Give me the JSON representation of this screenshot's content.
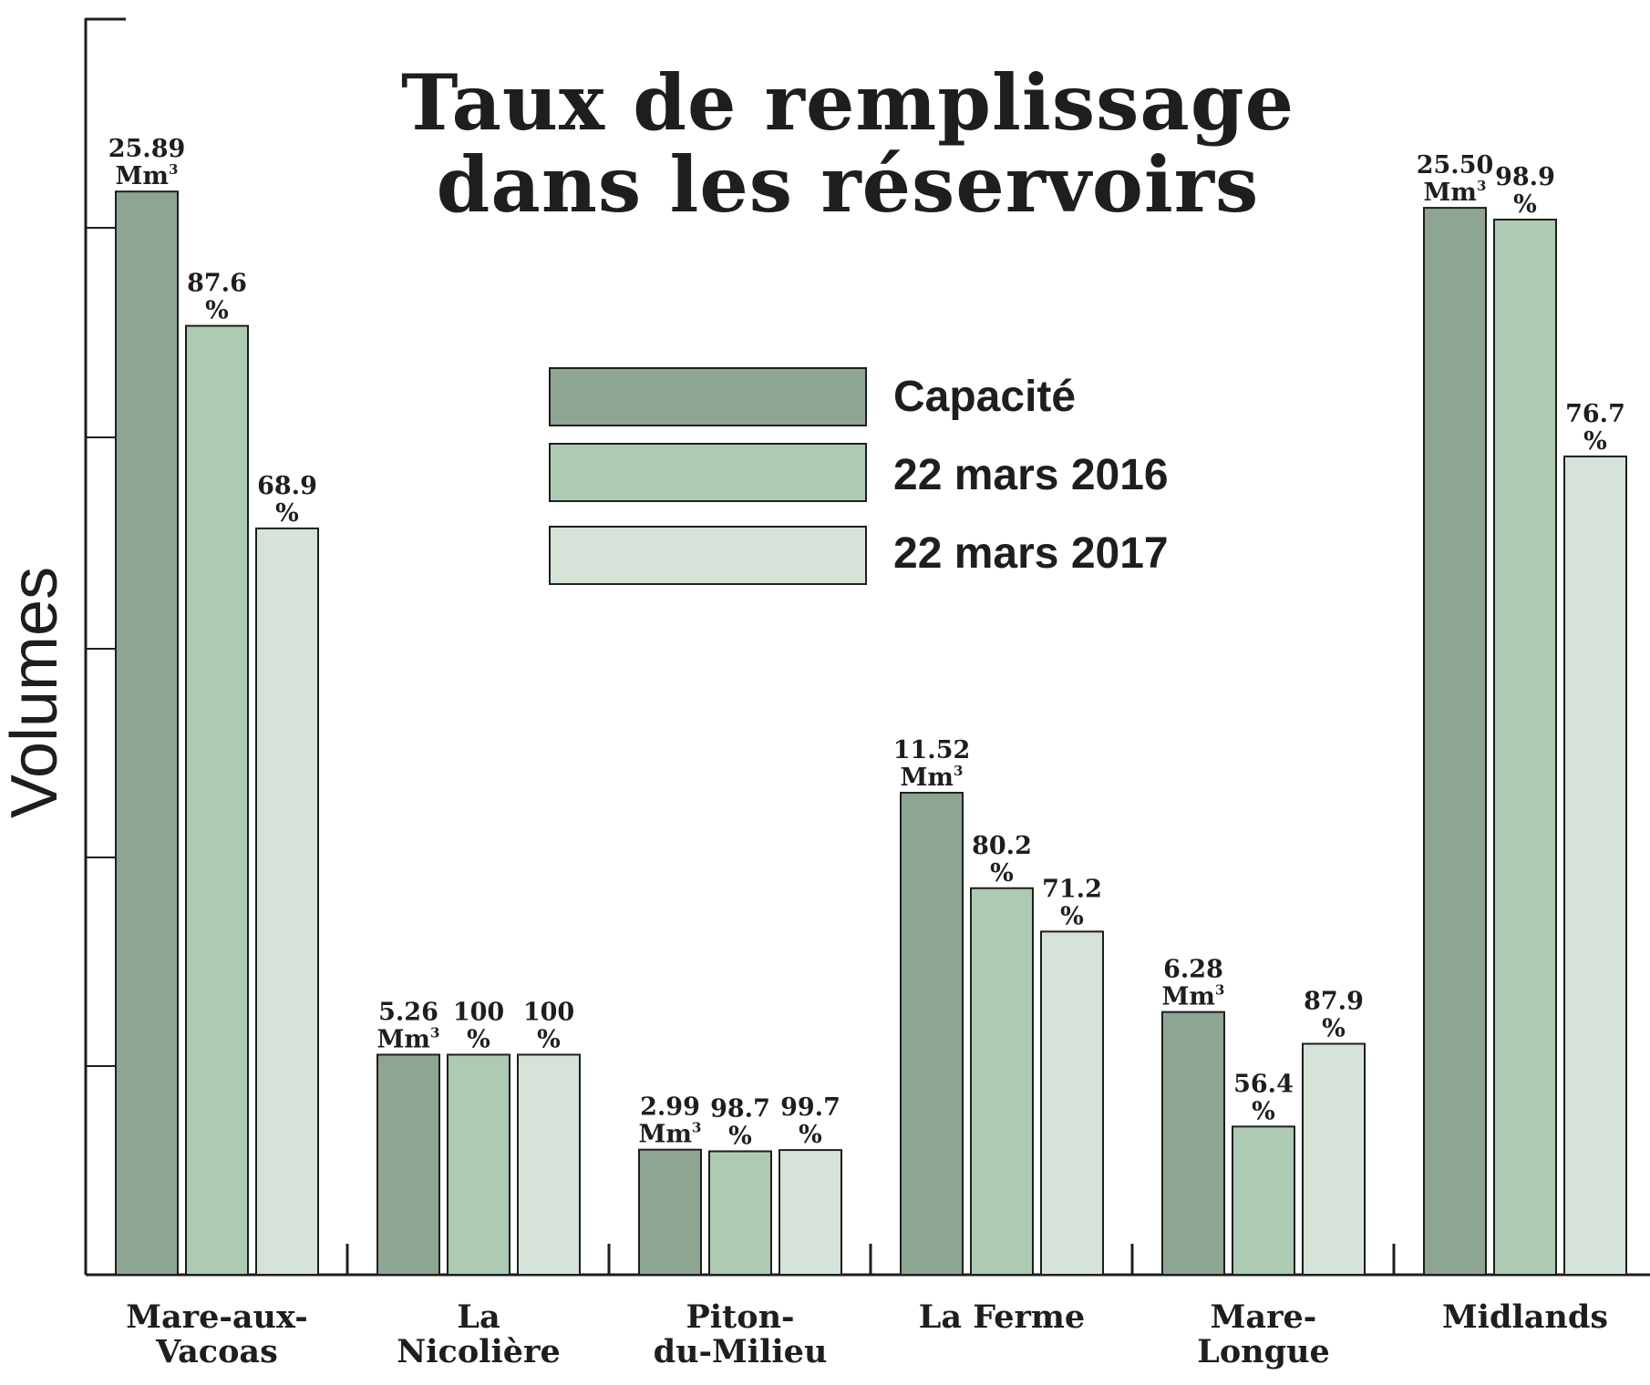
{
  "colors": {
    "capacite": "#8ea593",
    "mars_2016": "#adcab3",
    "mars_2017": "#d5e3d8",
    "stroke": "#1e1e1e"
  },
  "chart_data": {
    "type": "bar",
    "title_lines": [
      "Taux de remplissage",
      "dans les réservoirs"
    ],
    "ylabel": "Volumes",
    "xlabel": "",
    "categories": [
      [
        "Mare-aux-",
        "Vacoas"
      ],
      [
        "La",
        "Nicolière"
      ],
      [
        "Piton-",
        "du-Milieu"
      ],
      [
        "La Ferme"
      ],
      [
        "Mare-",
        "Longue"
      ],
      [
        "Midlands"
      ]
    ],
    "capacity_unit": "Mm",
    "capacity_unit_sup": "3",
    "series": [
      {
        "name": "Capacité",
        "values": [
          25.89,
          5.26,
          2.99,
          11.52,
          6.28,
          25.5
        ],
        "labels": [
          "25.89",
          "5.26",
          "2.99",
          "11.52",
          "6.28",
          "25.50"
        ]
      },
      {
        "name": "22 mars 2016",
        "fill_percent": [
          87.6,
          100,
          98.7,
          80.2,
          56.4,
          98.9
        ],
        "labels": [
          "87.6",
          "100",
          "98.7",
          "80.2",
          "56.4",
          "98.9"
        ]
      },
      {
        "name": "22 mars 2017",
        "fill_percent": [
          68.9,
          100,
          99.7,
          71.2,
          87.9,
          76.7
        ],
        "labels": [
          "68.9",
          "100",
          "99.7",
          "71.2",
          "87.9",
          "76.7"
        ]
      }
    ],
    "percent_symbol": "%",
    "grid": false,
    "legend_position": "top-center"
  }
}
